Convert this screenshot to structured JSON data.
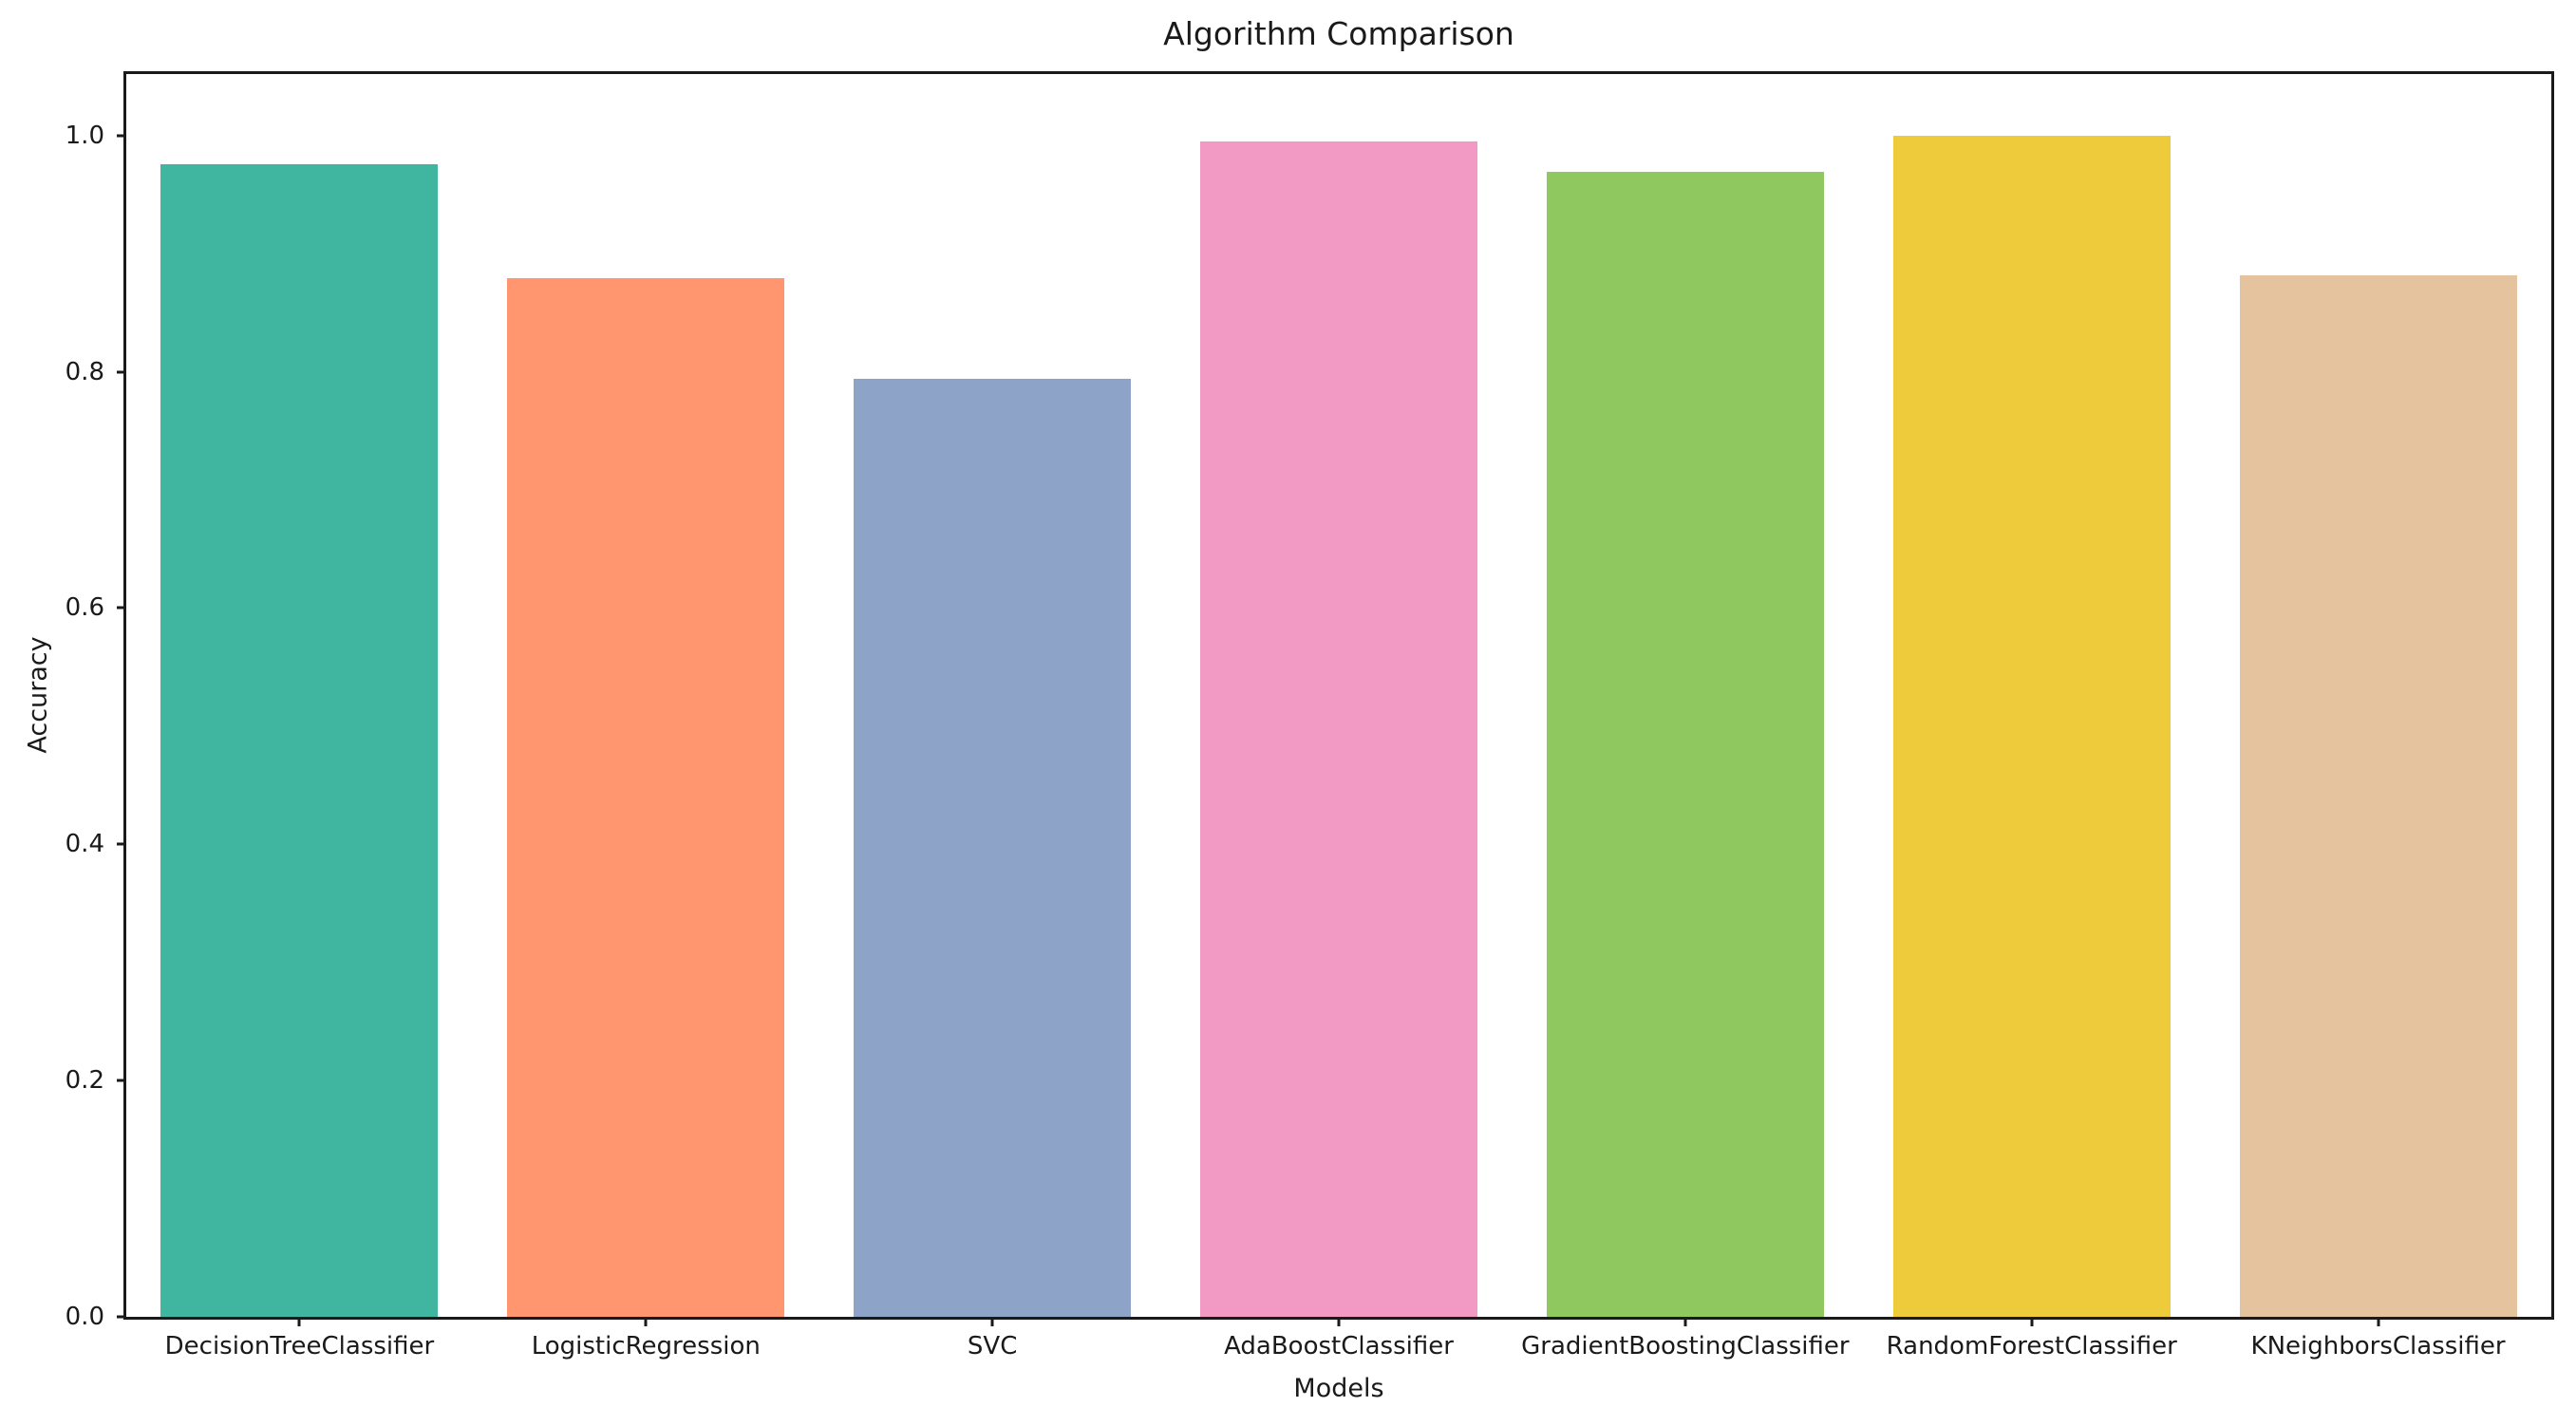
{
  "figure": {
    "background": "#ffffff",
    "spine_color": "#1a1a1a",
    "text_color": "#1a1a1a"
  },
  "chart_data": {
    "type": "bar",
    "title": "Algorithm Comparison",
    "xlabel": "Models",
    "ylabel": "Accuracy",
    "categories": [
      "DecisionTreeClassifier",
      "LogisticRegression",
      "SVC",
      "AdaBoostClassifier",
      "GradientBoostingClassifier",
      "RandomForestClassifier",
      "KNeighborsClassifier"
    ],
    "values": [
      0.976,
      0.879,
      0.794,
      0.995,
      0.969,
      1.0,
      0.882
    ],
    "bar_colors": [
      "#40b5a0",
      "#ff9670",
      "#8da3c7",
      "#f29ac4",
      "#90c860",
      "#eecb3a",
      "#e5c39e"
    ],
    "yticks": [
      0.0,
      0.2,
      0.4,
      0.6,
      0.8,
      1.0
    ],
    "ytick_labels": [
      "0.0",
      "0.2",
      "0.4",
      "0.6",
      "0.8",
      "1.0"
    ],
    "ylim": [
      0,
      1.052
    ],
    "bar_width_fraction": 0.8,
    "grid": false,
    "legend": null
  }
}
